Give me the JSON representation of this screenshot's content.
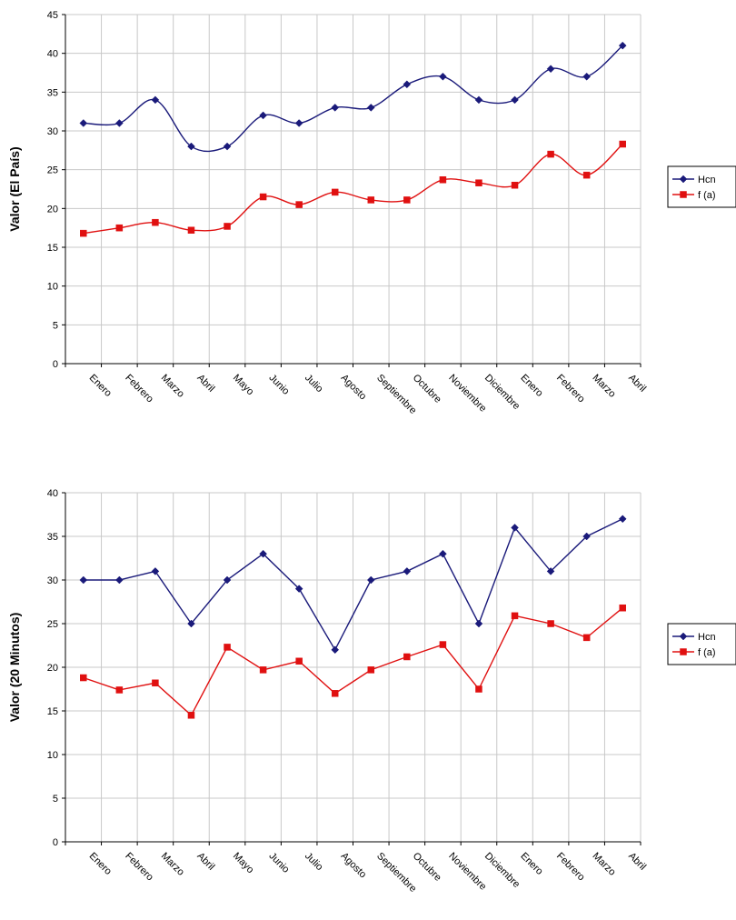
{
  "chart_data": [
    {
      "type": "line",
      "ylabel": "Valor (El País)",
      "xlabel": "",
      "ylim": [
        0,
        45
      ],
      "yticks": [
        0,
        5,
        10,
        15,
        20,
        25,
        30,
        35,
        40,
        45
      ],
      "categories": [
        "Enero",
        "Febrero",
        "Marzo",
        "Abril",
        "Mayo",
        "Junio",
        "Julio",
        "Agosto",
        "Septiembre",
        "Octubre",
        "Noviembre",
        "Diciembre",
        "Enero",
        "Febrero",
        "Marzo",
        "Abril"
      ],
      "grid": true,
      "smooth": true,
      "legend_position": "right",
      "series": [
        {
          "name": "Hcn",
          "color": "#1a1a7a",
          "marker": "diamond",
          "values": [
            31,
            31,
            34,
            28,
            28,
            32,
            31,
            33,
            33,
            36,
            37,
            34,
            34,
            38,
            37,
            41
          ]
        },
        {
          "name": "f (a)",
          "color": "#e01010",
          "marker": "square",
          "values": [
            16.8,
            17.5,
            18.2,
            17.2,
            17.7,
            21.5,
            20.5,
            22.1,
            21.1,
            21.1,
            23.7,
            23.3,
            23,
            27,
            24.3,
            28.3
          ]
        }
      ]
    },
    {
      "type": "line",
      "ylabel": "Valor (20 Minutos)",
      "xlabel": "",
      "ylim": [
        0,
        40
      ],
      "yticks": [
        0,
        5,
        10,
        15,
        20,
        25,
        30,
        35,
        40
      ],
      "categories": [
        "Enero",
        "Febrero",
        "Marzo",
        "Abril",
        "Mayo",
        "Junio",
        "Julio",
        "Agosto",
        "Septiembre",
        "Octubre",
        "Noviembre",
        "Diciembre",
        "Enero",
        "Febrero",
        "Marzo",
        "Abril"
      ],
      "grid": true,
      "smooth": false,
      "legend_position": "right",
      "series": [
        {
          "name": "Hcn",
          "color": "#1a1a7a",
          "marker": "diamond",
          "values": [
            30,
            30,
            31,
            25,
            30,
            33,
            29,
            22,
            30,
            31,
            33,
            25,
            36,
            31,
            35,
            37
          ]
        },
        {
          "name": "f (a)",
          "color": "#e01010",
          "marker": "square",
          "values": [
            18.8,
            17.4,
            18.2,
            14.5,
            22.3,
            19.7,
            20.7,
            17,
            19.7,
            21.2,
            22.6,
            17.5,
            25.9,
            25,
            23.4,
            26.8
          ]
        }
      ]
    }
  ]
}
